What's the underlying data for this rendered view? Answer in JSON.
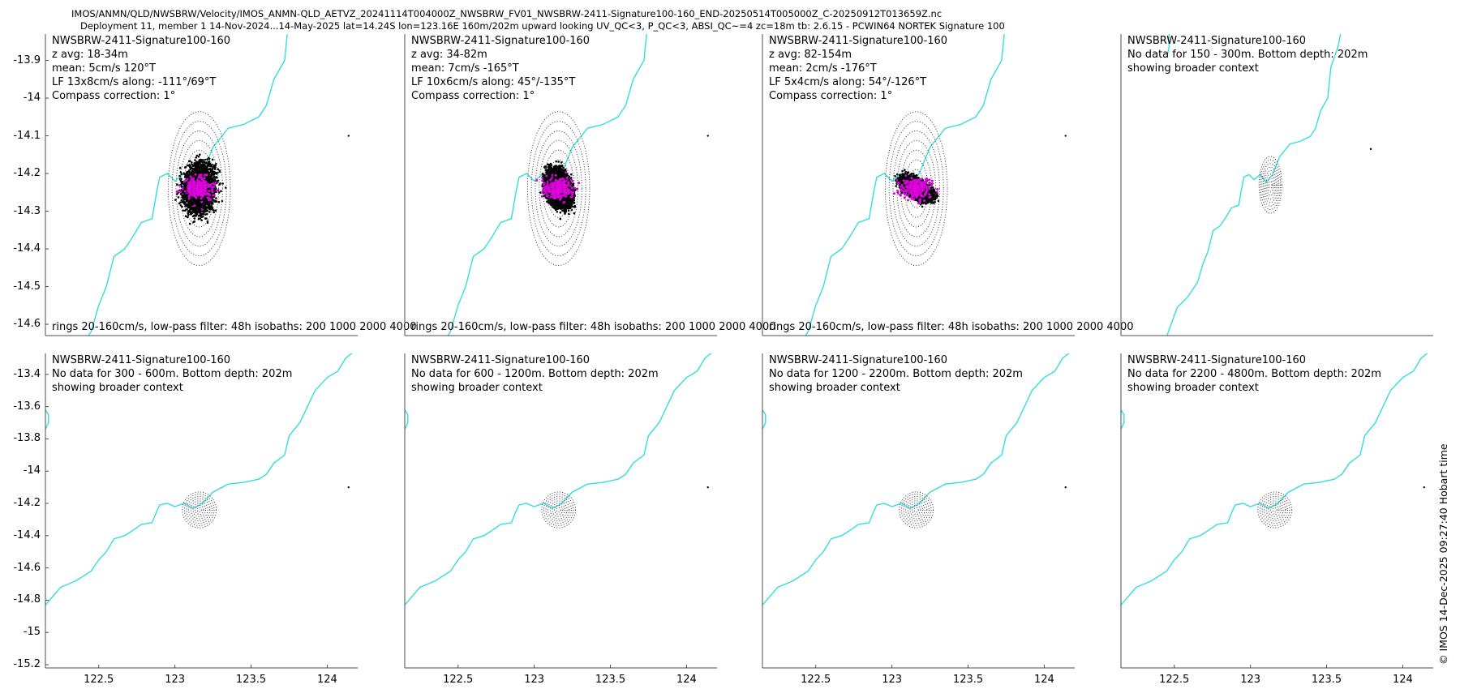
{
  "header": {
    "line1": "IMOS/ANMN/QLD/NWSBRW/Velocity/IMOS_ANMN-QLD_AETVZ_20241114T004000Z_NWSBRW_FV01_NWSBRW-2411-Signature100-160_END-20250514T005000Z_C-20250912T013659Z.nc",
    "line2": "Deployment 11, member 1 14-Nov-2024...14-May-2025 lat=14.24S lon=123.16E 160m/202m upward looking UV_QC<3, P_QC<3, ABSI_QC~=4 zc=18m tb: 2.6.15 - PCWIN64 NORTEK Signature 100"
  },
  "credit": "© IMOS 14-Dec-2025 09:27:40 Hobart time",
  "colors": {
    "coast": "#33dde0",
    "axis": "#4d4d4d",
    "ellipse_line": "#e000e0",
    "scatter": "#000000",
    "rings": "#333333"
  },
  "chart_data": [
    {
      "type": "scatter",
      "title": "NWSBRW-2411-Signature100-160",
      "lines": [
        "z avg: 18-34m",
        "mean: 5cm/s 120°T",
        "LF 13x8cm/s along: -111°/69°T",
        "Compass correction: 1°"
      ],
      "footer": "rings 20-160cm/s, low-pass filter: 48h isobaths: 200 1000 2000 4000",
      "xlim": [
        122.15,
        124.2
      ],
      "ylim": [
        -14.63,
        -13.83
      ],
      "yticks": [
        -13.9,
        -14,
        -14.1,
        -14.2,
        -14.3,
        -14.4,
        -14.5,
        -14.6
      ],
      "xticks": [],
      "center": [
        123.16,
        -14.24
      ],
      "ring_step_deg": 0.0255,
      "ring_count": 8,
      "cloud": {
        "sx": 0.16,
        "sy": 0.1,
        "corr": 0.1,
        "n": 4500
      },
      "core": {
        "sx": 0.085,
        "sy": 0.05
      },
      "mean_arrow": [
        0.02,
        -0.01
      ],
      "lf_line": {
        "angle_deg": 21,
        "half_len": 0.49,
        "sd_major": 0.13,
        "sd_minor": 0.08
      },
      "has_data": true
    },
    {
      "type": "scatter",
      "title": "NWSBRW-2411-Signature100-160",
      "lines": [
        "z avg: 34-82m",
        "mean: 7cm/s -165°T",
        "LF 10x6cm/s along: 45°/-135°T",
        "Compass correction: 1°"
      ],
      "footer": "rings 20-160cm/s, low-pass filter: 48h isobaths: 200 1000 2000 4000",
      "xlim": [
        122.15,
        124.2
      ],
      "ylim": [
        -14.63,
        -13.83
      ],
      "yticks": [],
      "xticks": [],
      "center": [
        123.16,
        -14.24
      ],
      "ring_step_deg": 0.0255,
      "ring_count": 8,
      "cloud": {
        "sx": 0.13,
        "sy": 0.075,
        "corr": -0.25,
        "n": 5500
      },
      "core": {
        "sx": 0.1,
        "sy": 0.06
      },
      "mean_arrow": [
        -0.018,
        -0.02
      ],
      "lf_line": {
        "angle_deg": 45,
        "half_len": 0.44,
        "sd_major": 0.1,
        "sd_minor": 0.06
      },
      "has_data": true
    },
    {
      "type": "scatter",
      "title": "NWSBRW-2411-Signature100-160",
      "lines": [
        "z avg: 82-154m",
        "mean: 2cm/s -176°T",
        "LF 5x4cm/s along: 54°/-126°T",
        "Compass correction: 1°"
      ],
      "footer": "rings 20-160cm/s, low-pass filter: 48h isobaths: 200 1000 2000 4000",
      "xlim": [
        122.15,
        124.2
      ],
      "ylim": [
        -14.63,
        -13.83
      ],
      "yticks": [],
      "xticks": [],
      "center": [
        123.16,
        -14.24
      ],
      "ring_step_deg": 0.0255,
      "ring_count": 8,
      "cloud": {
        "sx": 0.15,
        "sy": 0.05,
        "corr": -0.55,
        "n": 5000
      },
      "core": {
        "sx": 0.11,
        "sy": 0.035
      },
      "mean_arrow": [
        -0.01,
        -0.008
      ],
      "lf_line": {
        "angle_deg": 36,
        "half_len": 0.47,
        "sd_major": 0.05,
        "sd_minor": 0.04
      },
      "has_data": true
    },
    {
      "type": "scatter",
      "title": "NWSBRW-2411-Signature100-160",
      "lines": [
        "No data for 150 - 300m. Bottom depth: 202m",
        "showing broader context"
      ],
      "footer": "",
      "xlim": [
        121.7,
        124.75
      ],
      "ylim": [
        -14.83,
        -13.65
      ],
      "yticks": [],
      "xticks": [],
      "center": [
        123.16,
        -14.24
      ],
      "ring_step_deg": 0.0139,
      "ring_count": 8,
      "has_data": false
    },
    {
      "type": "scatter",
      "title": "NWSBRW-2411-Signature100-160",
      "lines": [
        "No data for 300 - 600m. Bottom depth: 202m",
        "showing broader context"
      ],
      "footer": "",
      "xlim": [
        122.15,
        124.2
      ],
      "ylim": [
        -15.22,
        -13.27
      ],
      "yticks": [
        -13.4,
        -13.6,
        -13.8,
        -14,
        -14.2,
        -14.4,
        -14.6,
        -14.8,
        -15,
        -15.2
      ],
      "xticks": [
        122.5,
        123,
        123.5,
        124
      ],
      "center": [
        123.16,
        -14.24
      ],
      "ring_step_deg": 0.0139,
      "ring_count": 8,
      "has_data": false
    },
    {
      "type": "scatter",
      "title": "NWSBRW-2411-Signature100-160",
      "lines": [
        "No data for 600 - 1200m. Bottom depth: 202m",
        "showing broader context"
      ],
      "footer": "",
      "xlim": [
        122.15,
        124.2
      ],
      "ylim": [
        -15.22,
        -13.27
      ],
      "yticks": [],
      "xticks": [
        122.5,
        123,
        123.5,
        124
      ],
      "center": [
        123.16,
        -14.24
      ],
      "ring_step_deg": 0.0139,
      "ring_count": 8,
      "has_data": false
    },
    {
      "type": "scatter",
      "title": "NWSBRW-2411-Signature100-160",
      "lines": [
        "No data for 1200 - 2200m. Bottom depth: 202m",
        "showing broader context"
      ],
      "footer": "",
      "xlim": [
        122.15,
        124.2
      ],
      "ylim": [
        -15.22,
        -13.27
      ],
      "yticks": [],
      "xticks": [
        122.5,
        123,
        123.5,
        124
      ],
      "center": [
        123.16,
        -14.24
      ],
      "ring_step_deg": 0.0139,
      "ring_count": 8,
      "has_data": false
    },
    {
      "type": "scatter",
      "title": "NWSBRW-2411-Signature100-160",
      "lines": [
        "No data for 2200 - 4800m. Bottom depth: 202m",
        "showing broader context"
      ],
      "footer": "",
      "xlim": [
        122.15,
        124.2
      ],
      "ylim": [
        -15.22,
        -13.27
      ],
      "yticks": [],
      "xticks": [
        122.5,
        123,
        123.5,
        124
      ],
      "center": [
        123.16,
        -14.24
      ],
      "ring_step_deg": 0.0139,
      "ring_count": 8,
      "has_data": false
    }
  ],
  "coastline": [
    [
      122.15,
      -14.83
    ],
    [
      122.25,
      -14.72
    ],
    [
      122.35,
      -14.68
    ],
    [
      122.45,
      -14.62
    ],
    [
      122.5,
      -14.55
    ],
    [
      122.55,
      -14.5
    ],
    [
      122.6,
      -14.42
    ],
    [
      122.67,
      -14.4
    ],
    [
      122.72,
      -14.37
    ],
    [
      122.78,
      -14.33
    ],
    [
      122.85,
      -14.32
    ],
    [
      122.88,
      -14.25
    ],
    [
      122.9,
      -14.21
    ],
    [
      122.95,
      -14.2
    ],
    [
      123.0,
      -14.22
    ],
    [
      123.06,
      -14.2
    ],
    [
      123.12,
      -14.23
    ],
    [
      123.18,
      -14.2
    ],
    [
      123.25,
      -14.13
    ],
    [
      123.35,
      -14.08
    ],
    [
      123.45,
      -14.07
    ],
    [
      123.55,
      -14.05
    ],
    [
      123.6,
      -14.02
    ],
    [
      123.65,
      -13.95
    ],
    [
      123.72,
      -13.9
    ],
    [
      123.75,
      -13.78
    ],
    [
      123.82,
      -13.7
    ],
    [
      123.87,
      -13.6
    ],
    [
      123.92,
      -13.5
    ],
    [
      124.0,
      -13.42
    ],
    [
      124.07,
      -13.38
    ],
    [
      124.12,
      -13.3
    ],
    [
      124.2,
      -13.24
    ]
  ],
  "island": [
    [
      122.15,
      -13.62
    ],
    [
      122.17,
      -13.65
    ],
    [
      122.17,
      -13.7
    ],
    [
      122.15,
      -13.74
    ]
  ],
  "reef": [
    124.14,
    -14.1
  ]
}
